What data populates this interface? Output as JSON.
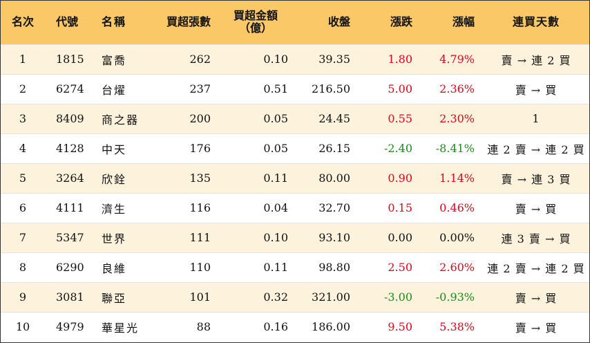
{
  "header": {
    "rank": "名次",
    "code": "代號",
    "name": "名稱",
    "net_buy_lots": "買超張數",
    "net_buy_amount_line1": "買超金額",
    "net_buy_amount_line2": "（億）",
    "close": "收盤",
    "change": "漲跌",
    "change_pct": "漲幅",
    "consecutive_days": "連買天數"
  },
  "rows": [
    {
      "rank": "1",
      "code": "1815",
      "name": "富喬",
      "lots": "262",
      "amount": "0.10",
      "close": "39.35",
      "change": "1.80",
      "pct": "4.79%",
      "days": "賣 → 連 2 買",
      "dir": "up"
    },
    {
      "rank": "2",
      "code": "6274",
      "name": "台燿",
      "lots": "237",
      "amount": "0.51",
      "close": "216.50",
      "change": "5.00",
      "pct": "2.36%",
      "days": "賣 → 買",
      "dir": "up"
    },
    {
      "rank": "3",
      "code": "8409",
      "name": "商之器",
      "lots": "200",
      "amount": "0.05",
      "close": "24.45",
      "change": "0.55",
      "pct": "2.30%",
      "days": "1",
      "dir": "up"
    },
    {
      "rank": "4",
      "code": "4128",
      "name": "中天",
      "lots": "176",
      "amount": "0.05",
      "close": "26.15",
      "change": "-2.40",
      "pct": "-8.41%",
      "days": "連 2 賣 → 連 2 買",
      "dir": "down"
    },
    {
      "rank": "5",
      "code": "3264",
      "name": "欣銓",
      "lots": "135",
      "amount": "0.11",
      "close": "80.00",
      "change": "0.90",
      "pct": "1.14%",
      "days": "賣 → 連 3 買",
      "dir": "up"
    },
    {
      "rank": "6",
      "code": "4111",
      "name": "濟生",
      "lots": "116",
      "amount": "0.04",
      "close": "32.70",
      "change": "0.15",
      "pct": "0.46%",
      "days": "賣 → 買",
      "dir": "up"
    },
    {
      "rank": "7",
      "code": "5347",
      "name": "世界",
      "lots": "111",
      "amount": "0.10",
      "close": "93.10",
      "change": "0.00",
      "pct": "0.00%",
      "days": "連 3 賣 → 買",
      "dir": "flat"
    },
    {
      "rank": "8",
      "code": "6290",
      "name": "良維",
      "lots": "110",
      "amount": "0.11",
      "close": "98.80",
      "change": "2.50",
      "pct": "2.60%",
      "days": "連 2 賣 → 連 2 買",
      "dir": "up"
    },
    {
      "rank": "9",
      "code": "3081",
      "name": "聯亞",
      "lots": "101",
      "amount": "0.32",
      "close": "321.00",
      "change": "-3.00",
      "pct": "-0.93%",
      "days": "賣 → 買",
      "dir": "down"
    },
    {
      "rank": "10",
      "code": "4979",
      "name": "華星光",
      "lots": "88",
      "amount": "0.16",
      "close": "186.00",
      "change": "9.50",
      "pct": "5.38%",
      "days": "賣 → 買",
      "dir": "up"
    }
  ],
  "colors": {
    "header_bg": "#fbc867",
    "odd_row_bg": "#fdf2dc",
    "up": "#e0001b",
    "down": "#1d8a1d",
    "flat": "#111111"
  }
}
